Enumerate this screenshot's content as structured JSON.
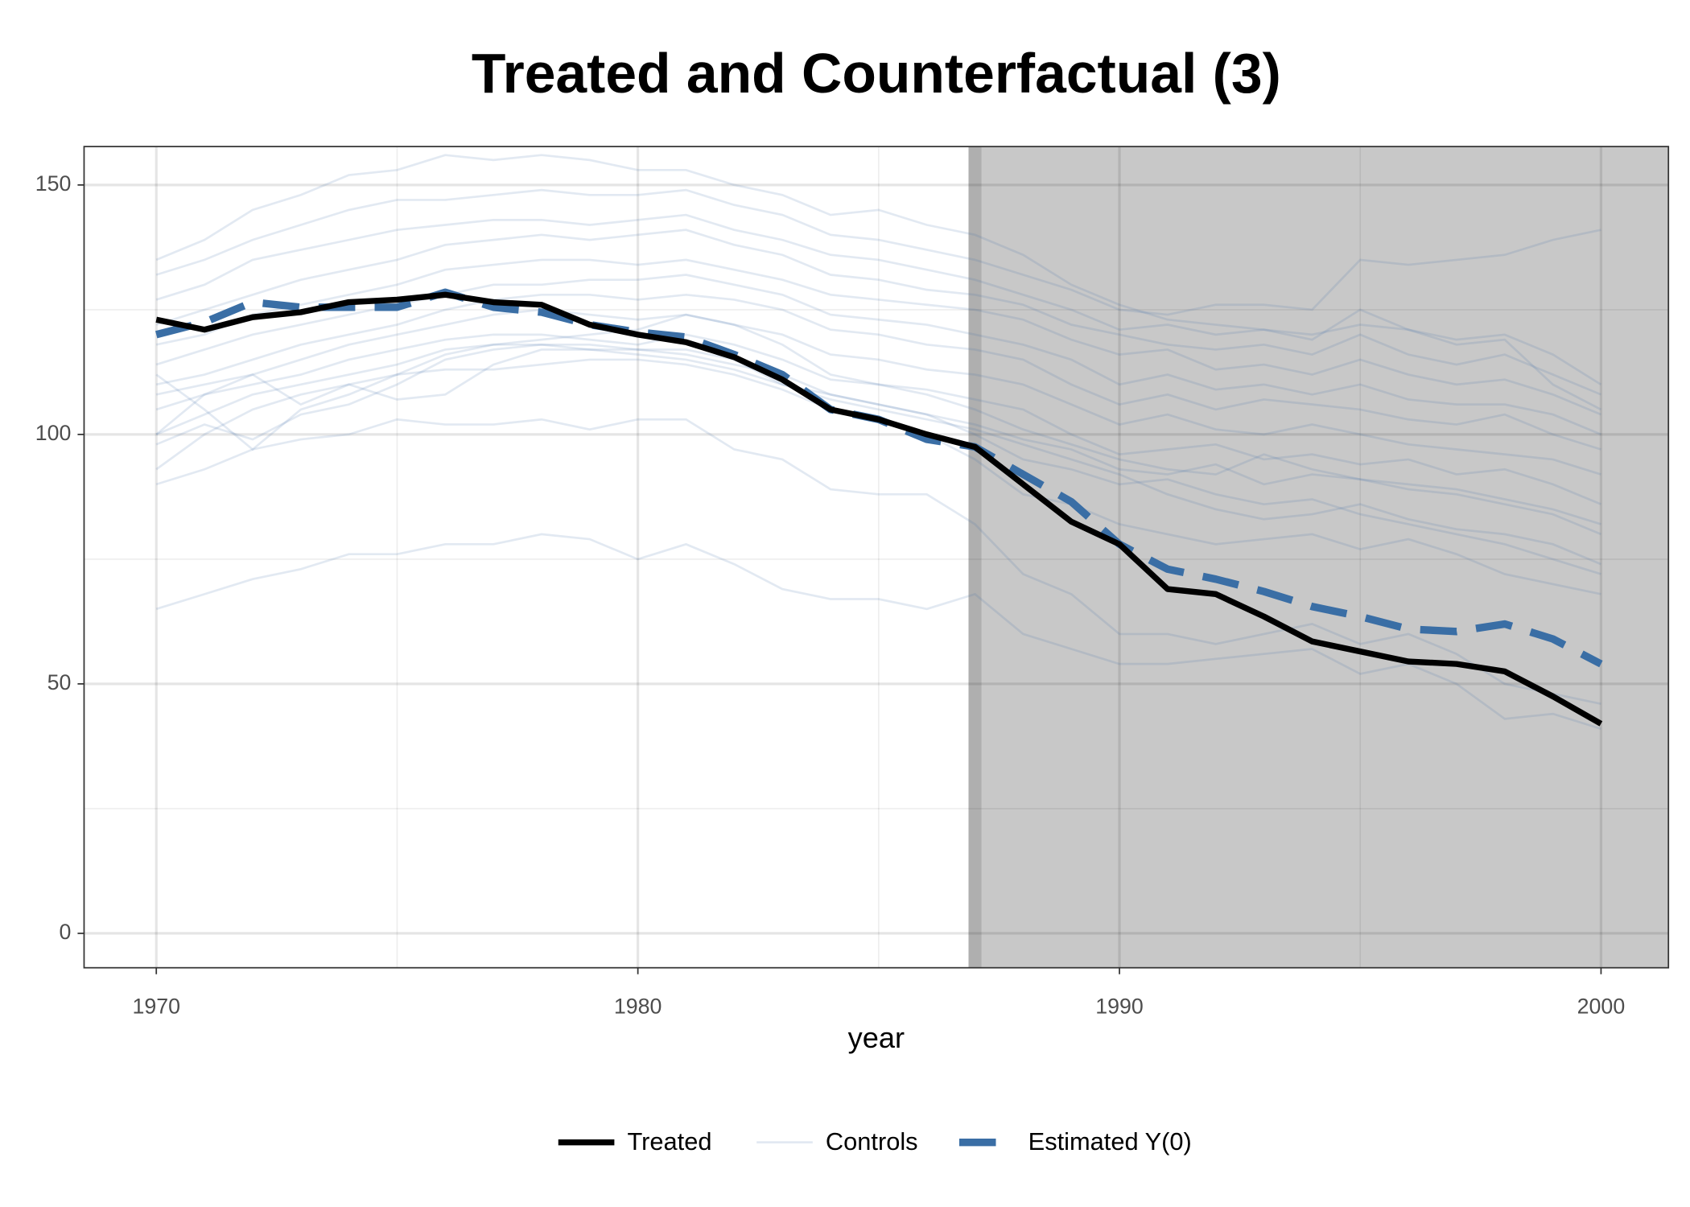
{
  "chart_data": {
    "type": "line",
    "title": "Treated and Counterfactual (3)",
    "x_label": "year",
    "x": [
      1970,
      1971,
      1972,
      1973,
      1974,
      1975,
      1976,
      1977,
      1978,
      1979,
      1980,
      1981,
      1982,
      1983,
      1984,
      1985,
      1986,
      1987,
      1988,
      1989,
      1990,
      1991,
      1992,
      1993,
      1994,
      1995,
      1996,
      1997,
      1998,
      1999,
      2000
    ],
    "xlim": [
      1968.5,
      2001.4
    ],
    "xticks": [
      1970,
      1980,
      1990,
      2000
    ],
    "xminor": [
      1975,
      1985,
      1995
    ],
    "ylim": [
      -6.9,
      157.7
    ],
    "yticks": [
      0,
      50,
      100,
      150
    ],
    "yminor": [
      25,
      75,
      125
    ],
    "grid": true,
    "legend": "bottom",
    "intervention": 1987,
    "shade_color": "#c8c8c8",
    "series": [
      {
        "name": "Treated",
        "color": "#000000",
        "values": [
          123,
          121,
          123.5,
          124.5,
          126.5,
          127,
          128,
          126.5,
          126,
          122,
          120,
          118.5,
          115.5,
          111,
          105,
          103,
          100,
          97.5,
          90,
          82.5,
          78,
          69,
          68,
          63.5,
          58.5,
          56.5,
          54.5,
          54,
          52.5,
          47.5,
          42
        ]
      },
      {
        "name": "Estimated Y(0)",
        "color": "#3a6ea5",
        "dashed": true,
        "values": [
          120,
          122.5,
          126.5,
          125.5,
          125.5,
          125.5,
          128.5,
          125.5,
          124.5,
          122,
          120.5,
          119.5,
          116,
          112,
          105,
          103,
          99,
          97.5,
          92,
          86.5,
          78,
          73,
          71,
          68.5,
          65.5,
          63.5,
          61,
          60.5,
          62,
          59,
          54
        ]
      }
    ],
    "controls": {
      "name": "Controls",
      "color": "#3a6ea5",
      "values": [
        [
          65,
          68,
          71,
          73,
          76,
          76,
          78,
          78,
          80,
          79,
          75,
          78,
          74,
          69,
          67,
          67,
          65,
          68,
          60,
          57,
          54,
          54,
          55,
          56,
          57,
          52,
          54,
          50,
          43,
          44,
          41
        ],
        [
          90,
          93,
          97,
          99,
          100,
          103,
          102,
          102,
          103,
          101,
          103,
          103,
          97,
          95,
          89,
          88,
          88,
          82,
          72,
          68,
          60,
          60,
          58,
          60,
          62,
          58,
          60,
          56,
          50,
          48,
          46
        ],
        [
          93,
          100,
          105,
          108,
          110,
          112,
          113,
          113,
          114,
          115,
          115,
          114,
          112,
          109,
          105,
          103,
          100,
          95,
          88,
          86,
          82,
          80,
          78,
          79,
          80,
          77,
          79,
          76,
          72,
          70,
          68
        ],
        [
          100,
          104,
          108,
          110,
          112,
          114,
          117,
          118,
          118,
          118,
          117,
          116,
          114,
          112,
          108,
          106,
          104,
          102,
          99,
          97,
          93,
          92,
          94,
          90,
          92,
          91,
          89,
          88,
          86,
          84,
          80
        ],
        [
          105,
          108,
          110,
          112,
          115,
          117,
          119,
          120,
          120,
          119,
          118,
          120,
          118,
          115,
          111,
          110,
          109,
          107,
          105,
          100,
          96,
          97,
          98,
          95,
          96,
          94,
          95,
          92,
          93,
          90,
          86
        ],
        [
          108,
          110,
          112,
          115,
          118,
          120,
          122,
          124,
          125,
          124,
          123,
          124,
          122,
          120,
          116,
          115,
          113,
          112,
          110,
          106,
          102,
          104,
          101,
          100,
          102,
          100,
          98,
          97,
          96,
          95,
          92
        ],
        [
          110,
          112,
          115,
          118,
          120,
          122,
          125,
          127,
          128,
          128,
          127,
          128,
          127,
          125,
          121,
          120,
          118,
          117,
          115,
          110,
          106,
          108,
          105,
          107,
          106,
          105,
          103,
          102,
          104,
          100,
          97
        ],
        [
          114,
          117,
          120,
          122,
          124,
          126,
          128,
          130,
          130,
          131,
          131,
          132,
          130,
          128,
          124,
          123,
          122,
          120,
          118,
          115,
          110,
          112,
          109,
          110,
          108,
          110,
          107,
          106,
          106,
          104,
          100
        ],
        [
          118,
          120,
          124,
          126,
          128,
          130,
          133,
          134,
          135,
          135,
          134,
          135,
          133,
          131,
          128,
          127,
          126,
          125,
          123,
          119,
          116,
          117,
          113,
          114,
          112,
          115,
          112,
          110,
          111,
          108,
          104
        ],
        [
          122,
          125,
          128,
          131,
          133,
          135,
          138,
          139,
          140,
          139,
          140,
          141,
          138,
          136,
          132,
          131,
          129,
          128,
          126,
          122,
          120,
          118,
          117,
          118,
          116,
          120,
          116,
          114,
          116,
          112,
          108
        ],
        [
          127,
          130,
          135,
          137,
          139,
          141,
          142,
          143,
          143,
          142,
          143,
          144,
          141,
          139,
          136,
          135,
          133,
          131,
          128,
          125,
          121,
          122,
          120,
          121,
          119,
          125,
          121,
          119,
          120,
          116,
          110
        ],
        [
          132,
          135,
          139,
          142,
          145,
          147,
          147,
          148,
          149,
          148,
          148,
          149,
          146,
          144,
          140,
          139,
          137,
          135,
          132,
          129,
          125,
          124,
          126,
          126,
          125,
          135,
          134,
          135,
          136,
          139,
          141
        ],
        [
          135,
          139,
          145,
          148,
          152,
          153,
          156,
          155,
          156,
          155,
          153,
          153,
          150,
          148,
          144,
          145,
          142,
          140,
          136,
          130,
          126,
          123,
          122,
          121,
          120,
          122,
          121,
          118,
          119,
          110,
          105
        ],
        [
          100,
          108,
          112,
          106,
          110,
          107,
          108,
          114,
          117,
          117,
          117,
          117,
          115,
          110,
          108,
          106,
          104,
          100,
          95,
          93,
          90,
          91,
          88,
          86,
          87,
          84,
          82,
          80,
          78,
          75,
          72
        ],
        [
          112,
          105,
          97,
          105,
          108,
          112,
          116,
          118,
          119,
          120,
          121,
          124,
          122,
          118,
          112,
          110,
          108,
          105,
          101,
          98,
          95,
          93,
          92,
          96,
          93,
          91,
          90,
          89,
          87,
          85,
          82
        ],
        [
          98,
          102,
          99,
          104,
          106,
          110,
          115,
          117,
          118,
          117,
          116,
          115,
          113,
          110,
          107,
          105,
          103,
          101,
          98,
          95,
          92,
          88,
          85,
          83,
          84,
          86,
          83,
          81,
          80,
          78,
          74
        ]
      ]
    }
  }
}
